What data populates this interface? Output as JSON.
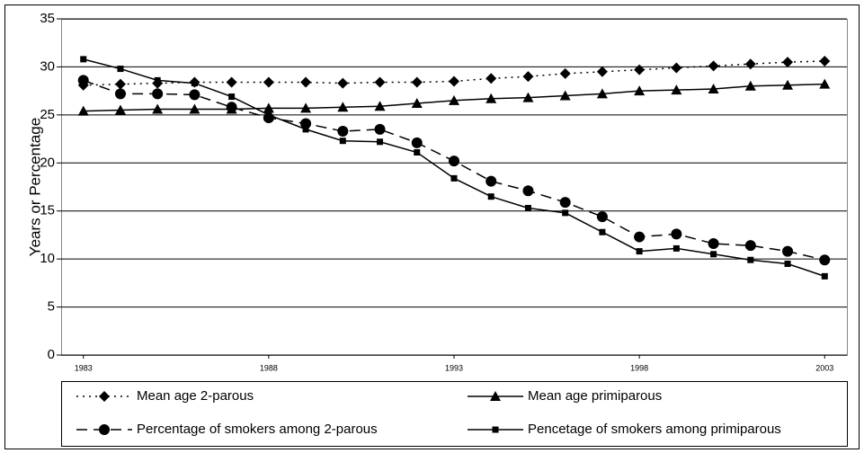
{
  "chart_data": {
    "type": "line",
    "y_label": "Years or Percentage",
    "x": [
      1983,
      1984,
      1985,
      1986,
      1987,
      1988,
      1989,
      1990,
      1991,
      1992,
      1993,
      1994,
      1995,
      1996,
      1997,
      1998,
      1999,
      2000,
      2001,
      2002,
      2003
    ],
    "xlim": [
      1982.4,
      2003.6
    ],
    "xticks": [
      1983,
      1988,
      1993,
      1998,
      2003
    ],
    "ylim": [
      0,
      35
    ],
    "yticks": [
      0,
      5,
      10,
      15,
      20,
      25,
      30,
      35
    ],
    "grid": true,
    "series": [
      {
        "name": "Mean age 2-parous",
        "color": "#000000",
        "marker": "diamond",
        "dash": "dotted",
        "values": [
          28.1,
          28.2,
          28.3,
          28.4,
          28.4,
          28.4,
          28.4,
          28.3,
          28.4,
          28.4,
          28.5,
          28.8,
          29.0,
          29.3,
          29.5,
          29.7,
          29.9,
          30.1,
          30.3,
          30.5,
          30.6
        ]
      },
      {
        "name": "Mean age primiparous",
        "color": "#000000",
        "marker": "triangle",
        "dash": "solid",
        "values": [
          25.4,
          25.5,
          25.6,
          25.6,
          25.6,
          25.7,
          25.7,
          25.8,
          25.9,
          26.2,
          26.5,
          26.7,
          26.8,
          27.0,
          27.2,
          27.5,
          27.6,
          27.7,
          28.0,
          28.1,
          28.2
        ]
      },
      {
        "name": "Percentage of smokers among 2-parous",
        "color": "#000000",
        "marker": "circle",
        "dash": "dashed",
        "values": [
          28.6,
          27.2,
          27.2,
          27.1,
          25.8,
          24.7,
          24.1,
          23.3,
          23.5,
          22.1,
          20.2,
          18.1,
          17.1,
          15.9,
          14.4,
          12.3,
          12.6,
          11.6,
          11.4,
          10.8,
          9.9
        ]
      },
      {
        "name": "Pencetage of smokers among primiparous",
        "color": "#000000",
        "marker": "square",
        "dash": "solid",
        "values": [
          30.8,
          29.8,
          28.6,
          28.3,
          26.9,
          25.0,
          23.5,
          22.3,
          22.2,
          21.1,
          18.4,
          16.5,
          15.3,
          14.8,
          12.8,
          10.8,
          11.1,
          10.5,
          9.9,
          9.5,
          8.2
        ]
      }
    ]
  }
}
